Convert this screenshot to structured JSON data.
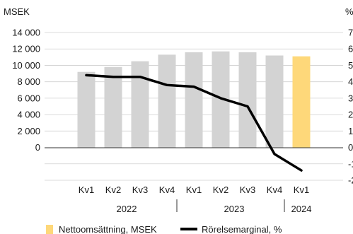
{
  "chart_data": {
    "type": "bar",
    "left_axis_label": "MSEK",
    "right_axis_label": "%",
    "left_ticks": [
      "14 000",
      "12 000",
      "10 000",
      "8 000",
      "6 000",
      "4 000",
      "2 000",
      "0"
    ],
    "right_ticks": [
      "7",
      "6",
      "5",
      "4",
      "3",
      "2",
      "1",
      "0",
      "-1",
      "-2"
    ],
    "ylim_left": [
      -4000,
      14000
    ],
    "ylim_right": [
      -2,
      7
    ],
    "quarters": [
      "Kv1",
      "Kv2",
      "Kv3",
      "Kv4",
      "Kv1",
      "Kv2",
      "Kv3",
      "Kv4",
      "Kv1"
    ],
    "years": [
      {
        "label": "2022",
        "quarter_count": 4
      },
      {
        "label": "2023",
        "quarter_count": 4
      },
      {
        "label": "2024",
        "quarter_count": 1
      }
    ],
    "series": [
      {
        "name": "Nettoomsättning, MSEK",
        "type": "bar",
        "axis": "left",
        "values": [
          9200,
          9800,
          10500,
          11300,
          11600,
          11700,
          11600,
          11200,
          11100
        ],
        "color": "#d3d3d3",
        "highlight_color": "#fed87a",
        "highlight_index": 8
      },
      {
        "name": "Rörelsemarginal, %",
        "type": "line",
        "axis": "right",
        "values": [
          4.4,
          4.3,
          4.3,
          3.8,
          3.7,
          3.0,
          2.5,
          -0.4,
          -1.4
        ],
        "color": "#000000"
      }
    ],
    "grid": true,
    "legend_position": "bottom-left"
  }
}
